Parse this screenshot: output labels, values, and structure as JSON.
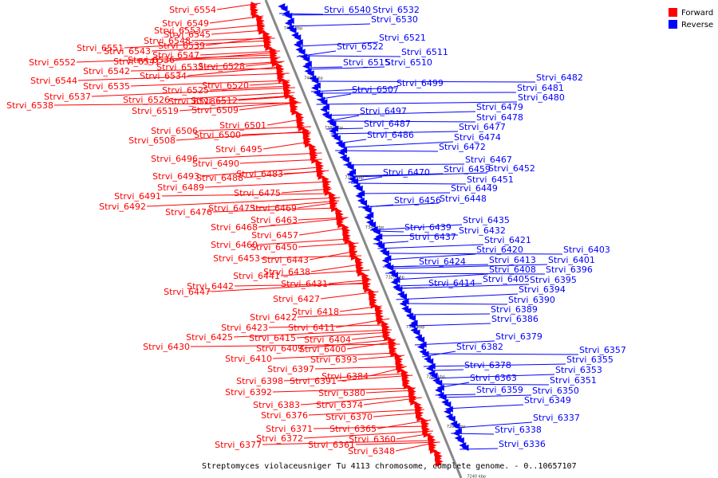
{
  "caption": "Streptomyces violaceusniger Tu 4113 chromosome, complete genome. - 0..10657107",
  "legend": [
    {
      "label": "Forward",
      "color": "#ff0000"
    },
    {
      "label": "Reverse",
      "color": "#0000ff"
    }
  ],
  "ticks": [
    "7420 kbp",
    "7400 kbp",
    "7380 kbp",
    "7360 kbp",
    "7340 kbp",
    "7320 kbp",
    "7300 kbp",
    "7280 kbp",
    "7260 kbp",
    "7240 kbp"
  ],
  "colors": {
    "forward": "#ff0000",
    "reverse": "#0000ff",
    "axis": "#888888"
  },
  "genes_forward": [
    "Strvi_6554",
    "Strvi_6549",
    "Strvi_6553",
    "Strvi_6545",
    "Strvi_6548",
    "Strvi_6539",
    "Strvi_6551",
    "Strvi_6543",
    "Strvi_6547",
    "Strvi_6536",
    "Strvi_6541",
    "Strvi_6552",
    "Strvi_6533",
    "Strvi_6528",
    "Strvi_6542",
    "Strvi_6534",
    "Strvi_6544",
    "Strvi_6535",
    "Strvi_6525",
    "Strvi_6520",
    "Strvi_6537",
    "Strvi_6526",
    "Strvi_6518",
    "Strvi_6512",
    "Strvi_6538",
    "Strvi_6519",
    "Strvi_6509",
    "Strvi_6501",
    "Strvi_6506",
    "Strvi_6500",
    "Strvi_6508",
    "Strvi_6495",
    "Strvi_6496",
    "Strvi_6490",
    "Strvi_6483",
    "Strvi_6493",
    "Strvi_6488",
    "Strvi_6489",
    "Strvi_6475",
    "Strvi_6491",
    "Strvi_6492",
    "Strvi_6473",
    "Strvi_6469",
    "Strvi_6476",
    "Strvi_6463",
    "Strvi_6468",
    "Strvi_6457",
    "Strvi_6460",
    "Strvi_6450",
    "Strvi_6453",
    "Strvi_6443",
    "Strvi_6438",
    "Strvi_6441",
    "Strvi_6431",
    "Strvi_6442",
    "Strvi_6447",
    "Strvi_6427",
    "Strvi_6418",
    "Strvi_6422",
    "Strvi_6423",
    "Strvi_6411",
    "Strvi_6425",
    "Strvi_6415",
    "Strvi_6404",
    "Strvi_6430",
    "Strvi_6409",
    "Strvi_6400",
    "Strvi_6410",
    "Strvi_6393",
    "Strvi_6397",
    "Strvi_6384",
    "Strvi_6398",
    "Strvi_6391",
    "Strvi_6392",
    "Strvi_6380",
    "Strvi_6383",
    "Strvi_6374",
    "Strvi_6376",
    "Strvi_6370",
    "Strvi_6371",
    "Strvi_6365",
    "Strvi_6372",
    "Strvi_6360",
    "Strvi_6377",
    "Strvi_6361",
    "Strvi_6348"
  ],
  "genes_reverse": [
    "Strvi_6540",
    "Strvi_6532",
    "Strvi_6530",
    "Strvi_6521",
    "Strvi_6522",
    "Strvi_6511",
    "Strvi_6515",
    "Strvi_6510",
    "Strvi_6499",
    "Strvi_6507",
    "Strvi_6482",
    "Strvi_6481",
    "Strvi_6480",
    "Strvi_6479",
    "Strvi_6497",
    "Strvi_6478",
    "Strvi_6487",
    "Strvi_6477",
    "Strvi_6486",
    "Strvi_6474",
    "Strvi_6472",
    "Strvi_6467",
    "Strvi_6459",
    "Strvi_6452",
    "Strvi_6470",
    "Strvi_6451",
    "Strvi_6449",
    "Strvi_6456",
    "Strvi_6448",
    "Strvi_6435",
    "Strvi_6439",
    "Strvi_6432",
    "Strvi_6437",
    "Strvi_6421",
    "Strvi_6420",
    "Strvi_6403",
    "Strvi_6424",
    "Strvi_6413",
    "Strvi_6401",
    "Strvi_6408",
    "Strvi_6396",
    "Strvi_6414",
    "Strvi_6405",
    "Strvi_6395",
    "Strvi_6394",
    "Strvi_6390",
    "Strvi_6389",
    "Strvi_6386",
    "Strvi_6379",
    "Strvi_6382",
    "Strvi_6357",
    "Strvi_6378",
    "Strvi_6355",
    "Strvi_6353",
    "Strvi_6363",
    "Strvi_6351",
    "Strvi_6359",
    "Strvi_6350",
    "Strvi_6349",
    "Strvi_6337",
    "Strvi_6338",
    "Strvi_6336"
  ]
}
